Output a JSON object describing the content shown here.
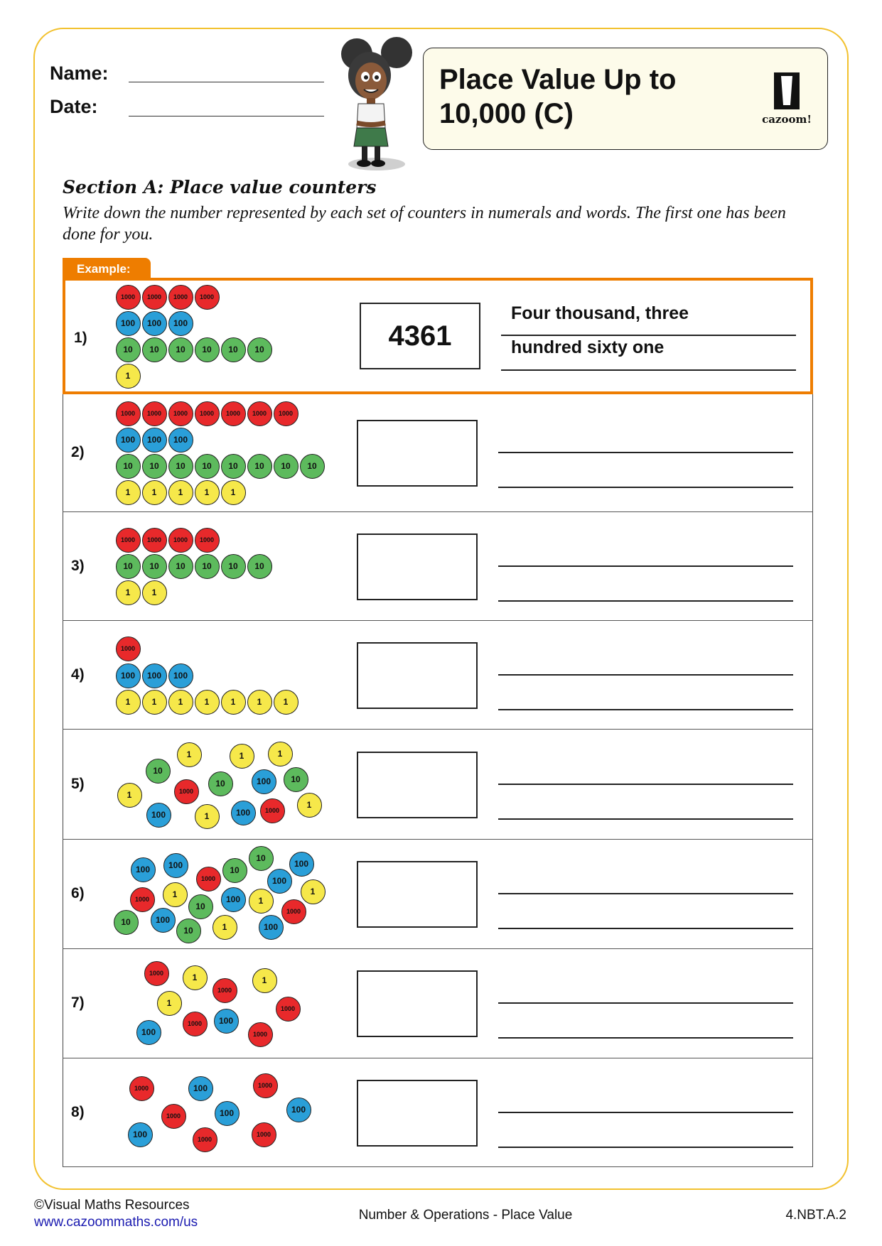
{
  "header": {
    "name_label": "Name:",
    "date_label": "Date:"
  },
  "title": {
    "line1": "Place Value Up to",
    "line2": "10,000 (C)",
    "logo_text": "cazoom!"
  },
  "section": {
    "heading": "Section A:  Place value counters",
    "instructions": "Write down the number represented by each set of counters in numerals and words. The first one has been done for you.",
    "example_tab": "Example:"
  },
  "colors": {
    "1000": "#e8292b",
    "100": "#2a9fd8",
    "10": "#5dba5d",
    "1": "#f6e84a",
    "accent": "#ee7d00",
    "frame": "#f2c12e"
  },
  "questions": [
    {
      "label": "1)",
      "answer": "4361",
      "words_line1": "Four thousand, three",
      "words_line2": "hundred sixty one",
      "counter_rows": [
        [
          "1000",
          "1000",
          "1000",
          "1000"
        ],
        [
          "100",
          "100",
          "100"
        ],
        [
          "10",
          "10",
          "10",
          "10",
          "10",
          "10"
        ],
        [
          "1"
        ]
      ]
    },
    {
      "label": "2)",
      "answer": "",
      "counter_rows": [
        [
          "1000",
          "1000",
          "1000",
          "1000",
          "1000",
          "1000",
          "1000"
        ],
        [
          "100",
          "100",
          "100"
        ],
        [
          "10",
          "10",
          "10",
          "10",
          "10",
          "10",
          "10",
          "10"
        ],
        [
          "1",
          "1",
          "1",
          "1",
          "1"
        ]
      ]
    },
    {
      "label": "3)",
      "answer": "",
      "counter_rows": [
        [
          "1000",
          "1000",
          "1000",
          "1000"
        ],
        [
          "10",
          "10",
          "10",
          "10",
          "10",
          "10"
        ],
        [
          "1",
          "1"
        ]
      ]
    },
    {
      "label": "4)",
      "answer": "",
      "counter_rows": [
        [
          "1000"
        ],
        [
          "100",
          "100",
          "100"
        ],
        [
          "1",
          "1",
          "1",
          "1",
          "1",
          "1",
          "1"
        ]
      ]
    },
    {
      "label": "5)",
      "answer": "",
      "counters": [
        "1",
        "10",
        "1",
        "1",
        "1",
        "1000",
        "10",
        "100",
        "10",
        "100",
        "1",
        "100",
        "1000",
        "1"
      ]
    },
    {
      "label": "6)",
      "answer": "",
      "counters": [
        "100",
        "100",
        "1000",
        "10",
        "10",
        "100",
        "100",
        "1",
        "1000",
        "1",
        "10",
        "100",
        "1",
        "1000",
        "10",
        "100",
        "10",
        "1",
        "100"
      ]
    },
    {
      "label": "7)",
      "answer": "",
      "counters": [
        "1000",
        "1",
        "1000",
        "1",
        "1",
        "1000",
        "1000",
        "100",
        "100",
        "1000"
      ]
    },
    {
      "label": "8)",
      "answer": "",
      "counters": [
        "1000",
        "100",
        "1000",
        "1000",
        "100",
        "100",
        "100",
        "1000",
        "1000"
      ]
    }
  ],
  "footer": {
    "copyright": "©Visual Maths Resources",
    "link": "www.cazoommaths.com/us",
    "topic": "Number & Operations - Place Value",
    "standard": "4.NBT.A.2"
  }
}
